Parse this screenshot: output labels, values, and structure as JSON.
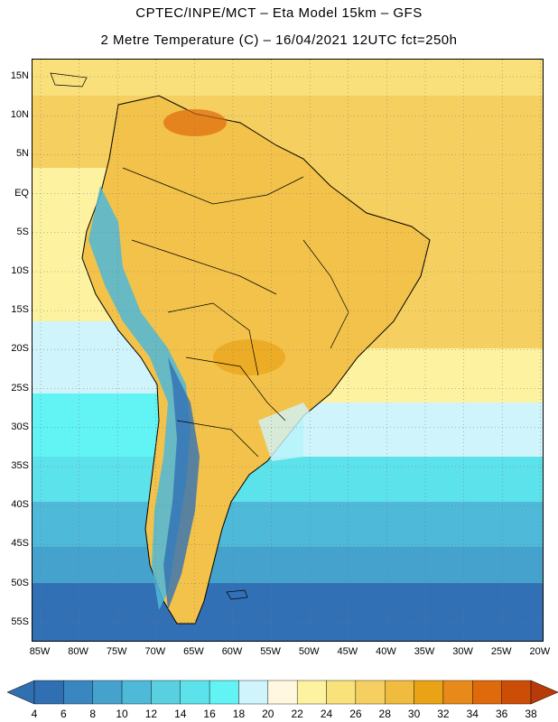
{
  "header": {
    "title_line1": "CPTEC/INPE/MCT –  Eta Model 15km – GFS",
    "title_line2": "2 Metre Temperature (C) – 16/04/2021 12UTC fct=250h"
  },
  "map": {
    "region": "South America",
    "lat_labels": [
      "15N",
      "10N",
      "5N",
      "EQ",
      "5S",
      "10S",
      "15S",
      "20S",
      "25S",
      "30S",
      "35S",
      "40S",
      "45S",
      "50S",
      "55S"
    ],
    "lon_labels": [
      "85W",
      "80W",
      "75W",
      "70W",
      "65W",
      "60W",
      "55W",
      "50W",
      "45W",
      "40W",
      "35W",
      "30W",
      "25W",
      "20W"
    ]
  },
  "colorbar": {
    "labels": [
      "4",
      "6",
      "8",
      "10",
      "12",
      "14",
      "16",
      "18",
      "20",
      "22",
      "24",
      "26",
      "28",
      "30",
      "32",
      "34",
      "36",
      "38"
    ],
    "low_arrow_color": "#3070b0",
    "high_arrow_color": "#b83a08",
    "colors": [
      "#2f6fb2",
      "#3a86c0",
      "#44a2cd",
      "#4eb9d8",
      "#58d0e0",
      "#5ce2ea",
      "#62f3f5",
      "#d0f4fb",
      "#fff7e0",
      "#fdf2a0",
      "#f9e27a",
      "#f5d060",
      "#efbc40",
      "#eaa316",
      "#e88a1a",
      "#de6a0c",
      "#cc4e06"
    ]
  }
}
